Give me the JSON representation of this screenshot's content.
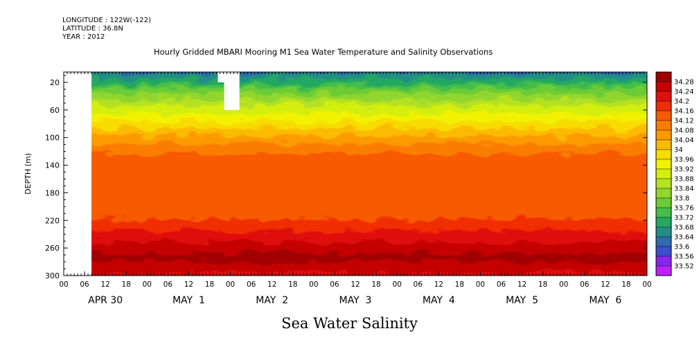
{
  "header": {
    "longitude": "LONGITUDE : 122W(-122)",
    "latitude": "LATITUDE : 36.8N",
    "year": "YEAR : 2012"
  },
  "chart_data": {
    "type": "heatmap",
    "title": "Hourly Gridded MBARI Mooring M1 Sea Water Temperature and Salinity Observations",
    "caption": "Sea Water Salinity",
    "ylabel": "DEPTH (m)",
    "xlim_hours": [
      0,
      168
    ],
    "ylim": [
      300,
      5
    ],
    "y_ticks": [
      20,
      60,
      100,
      140,
      180,
      220,
      260,
      300
    ],
    "x_hour_labels": [
      "00",
      "06",
      "12",
      "18",
      "00",
      "06",
      "12",
      "18",
      "00",
      "06",
      "12",
      "18",
      "00",
      "06",
      "12",
      "18",
      "00",
      "06",
      "12",
      "18",
      "00",
      "06",
      "12",
      "18",
      "00",
      "06",
      "12",
      "18",
      "00"
    ],
    "x_day_labels": [
      {
        "label": "APR 30",
        "hour": 12
      },
      {
        "label": "MAY  1",
        "hour": 36
      },
      {
        "label": "MAY  2",
        "hour": 60
      },
      {
        "label": "MAY  3",
        "hour": 84
      },
      {
        "label": "MAY  4",
        "hour": 108
      },
      {
        "label": "MAY  5",
        "hour": 132
      },
      {
        "label": "MAY  6",
        "hour": 156
      }
    ],
    "data_start_hour": 8,
    "colorbar_levels": [
      "34.28",
      "34.24",
      "34.2",
      "34.16",
      "34.12",
      "34.08",
      "34.04",
      "34",
      "33.96",
      "33.92",
      "33.88",
      "33.84",
      "33.8",
      "33.76",
      "33.72",
      "33.68",
      "33.64",
      "33.6",
      "33.56",
      "33.52"
    ],
    "colorbar_colors": [
      "#a00000",
      "#c40000",
      "#e01010",
      "#f02d00",
      "#f85a00",
      "#fb7d00",
      "#fc9a00",
      "#fbbb00",
      "#f8dc00",
      "#f2f200",
      "#d4ee10",
      "#b4e224",
      "#90d62e",
      "#6ccc36",
      "#44be4a",
      "#24a862",
      "#238e86",
      "#2c6cac",
      "#3e4ed0",
      "#8826ee",
      "#c020f8"
    ],
    "profile": [
      {
        "depth": 5,
        "value": 33.55
      },
      {
        "depth": 20,
        "value": 33.62
      },
      {
        "depth": 35,
        "value": 33.7
      },
      {
        "depth": 50,
        "value": 33.8
      },
      {
        "depth": 65,
        "value": 33.88
      },
      {
        "depth": 80,
        "value": 33.94
      },
      {
        "depth": 100,
        "value": 34.02
      },
      {
        "depth": 115,
        "value": 34.08
      },
      {
        "depth": 130,
        "value": 34.13
      },
      {
        "depth": 150,
        "value": 34.14
      },
      {
        "depth": 170,
        "value": 34.12
      },
      {
        "depth": 190,
        "value": 34.12
      },
      {
        "depth": 210,
        "value": 34.16
      },
      {
        "depth": 230,
        "value": 34.21
      },
      {
        "depth": 250,
        "value": 34.27
      },
      {
        "depth": 260,
        "value": 34.29
      },
      {
        "depth": 280,
        "value": 34.24
      },
      {
        "depth": 300,
        "value": 34.2
      }
    ],
    "missing_block": {
      "x_hours": [
        46,
        50
      ],
      "depth": [
        5,
        60
      ]
    }
  }
}
